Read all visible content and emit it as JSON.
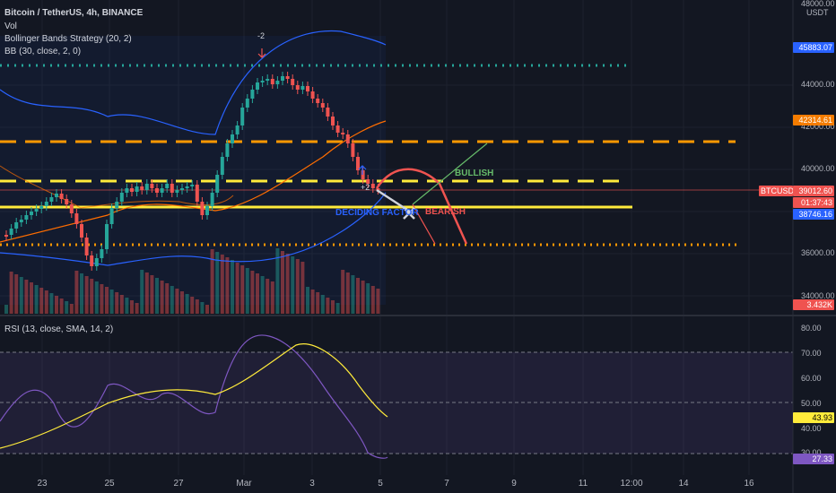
{
  "legend": {
    "symbol": "Bitcoin / TetherUS, 4h, BINANCE",
    "vol": "Vol",
    "strategy": "Bollinger Bands Strategy (20, 2)",
    "bb": "BB (30, close, 2, 0)",
    "rsi": "RSI (13, close, SMA, 14, 2)"
  },
  "price_axis": {
    "unit_top": "48000.00",
    "unit": "USDT",
    "ticks": [
      "44000.00",
      "42000.00",
      "40000.00",
      "36000.00",
      "34000.00"
    ]
  },
  "price_tags": {
    "resistance": {
      "value": "45883.07",
      "color": "#2962ff"
    },
    "orange": {
      "value": "42314.61",
      "color": "#f57c00"
    },
    "symbol": {
      "value": "BTCUSDT",
      "color": "#ef5350"
    },
    "price": {
      "value": "39012.60",
      "color": "#ef5350"
    },
    "countdown": {
      "value": "01:37:43",
      "color": "#ef5350"
    },
    "blue": {
      "value": "38746.16",
      "color": "#2962ff"
    },
    "volume": {
      "value": "3.432K",
      "color": "#ef5350"
    }
  },
  "rsi_axis": {
    "ticks": [
      "80.00",
      "70.00",
      "60.00",
      "50.00",
      "40.00",
      "30.00"
    ],
    "value_tag": {
      "value": "43.93",
      "color": "#ffeb3b"
    },
    "value_tag2": {
      "value": "27.33",
      "color": "#7e57c2"
    }
  },
  "x_axis": {
    "ticks": [
      "23",
      "25",
      "27",
      "Mar",
      "3",
      "5",
      "7",
      "9",
      "11",
      "12:00",
      "14",
      "16"
    ]
  },
  "annotations": {
    "signal_top": "-2",
    "signal_bottom": "+2",
    "bullish": "BULLISH",
    "bearish": "BEARISH",
    "deciding": "DECIDING FACTOR"
  },
  "colors": {
    "background": "#131722",
    "up": "#26a69a",
    "down": "#ef5350",
    "bb_band": "#2962ff",
    "bb_basis": "#ff6d00",
    "rsi_line": "#7e57c2",
    "rsi_ma": "#ffeb3b",
    "dotted_green": "#26a69a",
    "dashed_orange": "#ff9800",
    "dashed_yellow": "#ffeb3b",
    "dotted_orange": "#ff9800"
  }
}
